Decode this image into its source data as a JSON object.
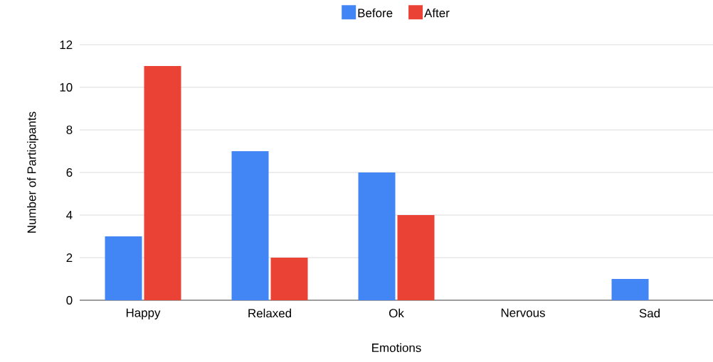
{
  "chart_data": {
    "type": "bar",
    "xlabel": "Emotions",
    "ylabel": "Number of Participants",
    "categories": [
      "Happy",
      "Relaxed",
      "Ok",
      "Nervous",
      "Sad"
    ],
    "series": [
      {
        "name": "Before",
        "color": "#4285f4",
        "values": [
          3,
          7,
          6,
          0,
          1
        ]
      },
      {
        "name": "After",
        "color": "#ea4335",
        "values": [
          11,
          2,
          4,
          0,
          0
        ]
      }
    ],
    "ylim": [
      0,
      12
    ],
    "yticks": [
      0,
      2,
      4,
      6,
      8,
      10,
      12
    ],
    "grid": "y",
    "legend": "top"
  }
}
